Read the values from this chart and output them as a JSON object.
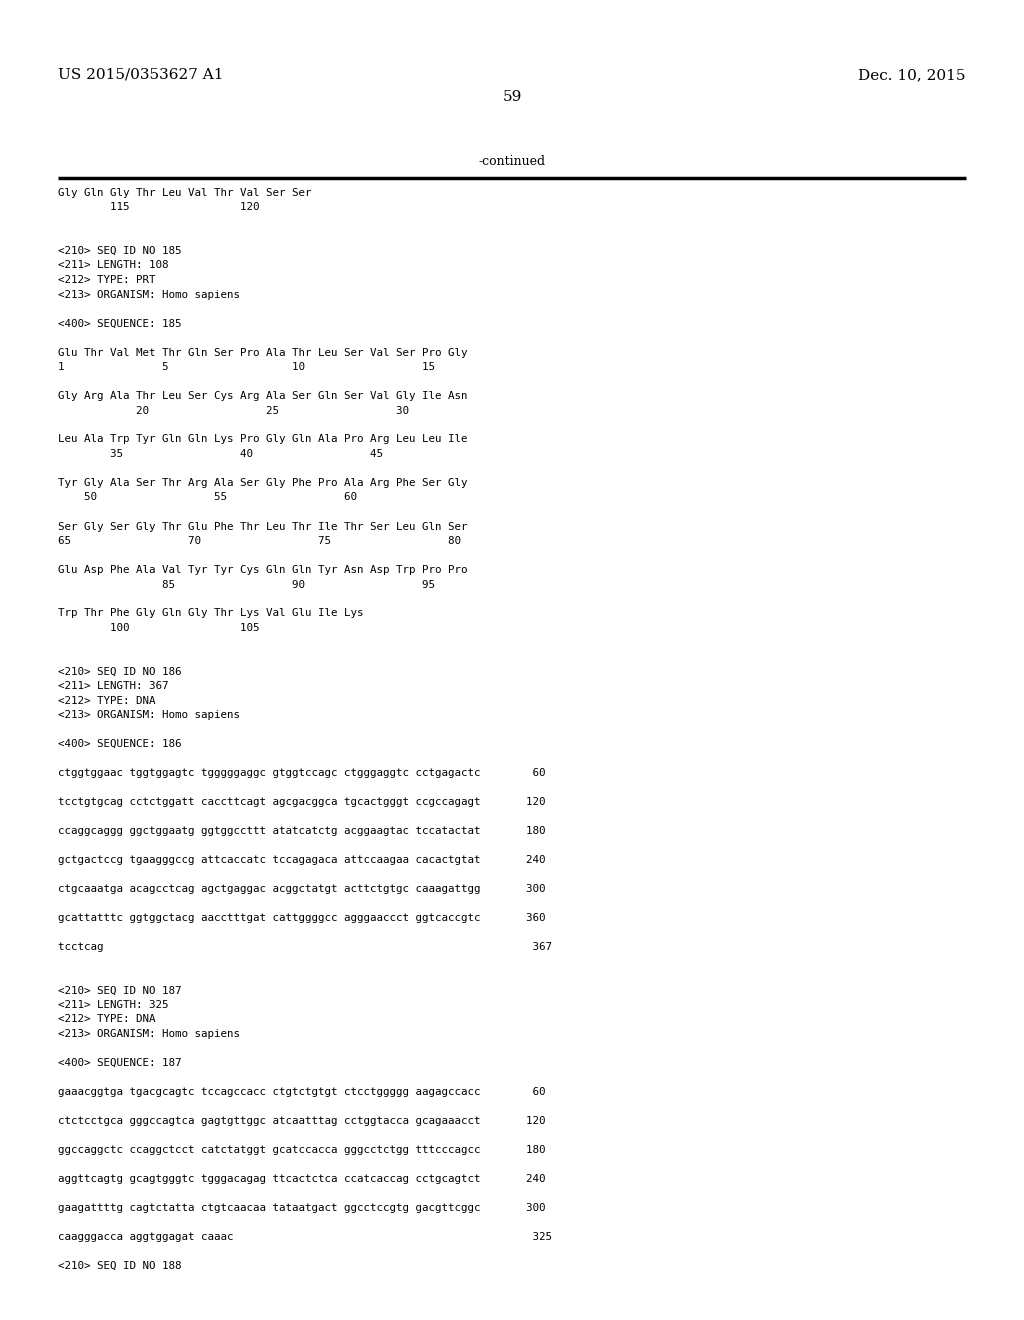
{
  "header_left": "US 2015/0353627 A1",
  "header_right": "Dec. 10, 2015",
  "page_number": "59",
  "continued_label": "-continued",
  "background_color": "#ffffff",
  "text_color": "#000000",
  "lines": [
    "Gly Gln Gly Thr Leu Val Thr Val Ser Ser",
    "        115                 120",
    "",
    "",
    "<210> SEQ ID NO 185",
    "<211> LENGTH: 108",
    "<212> TYPE: PRT",
    "<213> ORGANISM: Homo sapiens",
    "",
    "<400> SEQUENCE: 185",
    "",
    "Glu Thr Val Met Thr Gln Ser Pro Ala Thr Leu Ser Val Ser Pro Gly",
    "1               5                   10                  15",
    "",
    "Gly Arg Ala Thr Leu Ser Cys Arg Ala Ser Gln Ser Val Gly Ile Asn",
    "            20                  25                  30",
    "",
    "Leu Ala Trp Tyr Gln Gln Lys Pro Gly Gln Ala Pro Arg Leu Leu Ile",
    "        35                  40                  45",
    "",
    "Tyr Gly Ala Ser Thr Arg Ala Ser Gly Phe Pro Ala Arg Phe Ser Gly",
    "    50                  55                  60",
    "",
    "Ser Gly Ser Gly Thr Glu Phe Thr Leu Thr Ile Thr Ser Leu Gln Ser",
    "65                  70                  75                  80",
    "",
    "Glu Asp Phe Ala Val Tyr Tyr Cys Gln Gln Tyr Asn Asp Trp Pro Pro",
    "                85                  90                  95",
    "",
    "Trp Thr Phe Gly Gln Gly Thr Lys Val Glu Ile Lys",
    "        100                 105",
    "",
    "",
    "<210> SEQ ID NO 186",
    "<211> LENGTH: 367",
    "<212> TYPE: DNA",
    "<213> ORGANISM: Homo sapiens",
    "",
    "<400> SEQUENCE: 186",
    "",
    "ctggtggaac tggtggagtc tgggggaggc gtggtccagc ctgggaggtc cctgagactc        60",
    "",
    "tcctgtgcag cctctggatt caccttcagt agcgacggca tgcactgggt ccgccagagt       120",
    "",
    "ccaggcaggg ggctggaatg ggtggccttt atatcatctg acggaagtac tccatactat       180",
    "",
    "gctgactccg tgaagggccg attcaccatc tccagagaca attccaagaa cacactgtat       240",
    "",
    "ctgcaaatga acagcctcag agctgaggac acggctatgt acttctgtgc caaagattgg       300",
    "",
    "gcattatttc ggtggctacg aacctttgat cattggggcc agggaaccct ggtcaccgtc       360",
    "",
    "tcctcag                                                                  367",
    "",
    "",
    "<210> SEQ ID NO 187",
    "<211> LENGTH: 325",
    "<212> TYPE: DNA",
    "<213> ORGANISM: Homo sapiens",
    "",
    "<400> SEQUENCE: 187",
    "",
    "gaaacggtga tgacgcagtc tccagccacc ctgtctgtgt ctcctggggg aagagccacc        60",
    "",
    "ctctcctgca gggccagtca gagtgttggc atcaatttag cctggtacca gcagaaacct       120",
    "",
    "ggccaggctc ccaggctcct catctatggt gcatccacca gggcctctgg tttcccagcc       180",
    "",
    "aggttcagtg gcagtgggtc tgggacagag ttcactctca ccatcaccag cctgcagtct       240",
    "",
    "gaagattttg cagtctatta ctgtcaacaa tataatgact ggcctccgtg gacgttcggc       300",
    "",
    "caagggacca aggtggagat caaac                                              325",
    "",
    "<210> SEQ ID NO 188"
  ]
}
